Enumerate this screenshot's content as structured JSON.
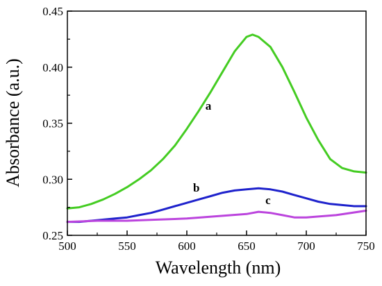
{
  "chart_data": {
    "type": "line",
    "xlabel": "Wavelength (nm)",
    "ylabel": "Absorbance (a.u.)",
    "xlim": [
      500,
      750
    ],
    "ylim": [
      0.25,
      0.45
    ],
    "xticks": [
      "500",
      "550",
      "600",
      "650",
      "700",
      "750"
    ],
    "yticks": [
      "0.25",
      "0.30",
      "0.35",
      "0.40",
      "0.45"
    ],
    "grid": false,
    "legend": "none",
    "series": [
      {
        "name": "a",
        "color": "#44cc22",
        "x": [
          500,
          510,
          520,
          530,
          540,
          550,
          560,
          570,
          580,
          590,
          600,
          610,
          620,
          630,
          640,
          650,
          655,
          660,
          670,
          680,
          690,
          700,
          710,
          720,
          730,
          740,
          750
        ],
        "y": [
          0.274,
          0.275,
          0.278,
          0.282,
          0.287,
          0.293,
          0.3,
          0.308,
          0.318,
          0.33,
          0.345,
          0.361,
          0.378,
          0.396,
          0.414,
          0.427,
          0.429,
          0.427,
          0.418,
          0.4,
          0.378,
          0.355,
          0.335,
          0.318,
          0.31,
          0.307,
          0.306
        ]
      },
      {
        "name": "b",
        "color": "#1e22cc",
        "x": [
          500,
          510,
          520,
          530,
          540,
          550,
          560,
          570,
          580,
          590,
          600,
          610,
          620,
          630,
          640,
          650,
          660,
          670,
          680,
          690,
          700,
          710,
          720,
          730,
          740,
          750
        ],
        "y": [
          0.262,
          0.262,
          0.263,
          0.264,
          0.265,
          0.266,
          0.268,
          0.27,
          0.273,
          0.276,
          0.279,
          0.282,
          0.285,
          0.288,
          0.29,
          0.291,
          0.292,
          0.291,
          0.289,
          0.286,
          0.283,
          0.28,
          0.278,
          0.277,
          0.276,
          0.276
        ]
      },
      {
        "name": "c",
        "color": "#bb44dd",
        "x": [
          500,
          525,
          550,
          575,
          600,
          625,
          650,
          660,
          670,
          680,
          690,
          700,
          725,
          750
        ],
        "y": [
          0.262,
          0.263,
          0.263,
          0.264,
          0.265,
          0.267,
          0.269,
          0.271,
          0.27,
          0.268,
          0.266,
          0.266,
          0.268,
          0.272
        ]
      }
    ],
    "annotations": [
      {
        "text": "a",
        "x": 618,
        "y": 0.362
      },
      {
        "text": "b",
        "x": 608,
        "y": 0.289
      },
      {
        "text": "c",
        "x": 668,
        "y": 0.278
      }
    ]
  }
}
